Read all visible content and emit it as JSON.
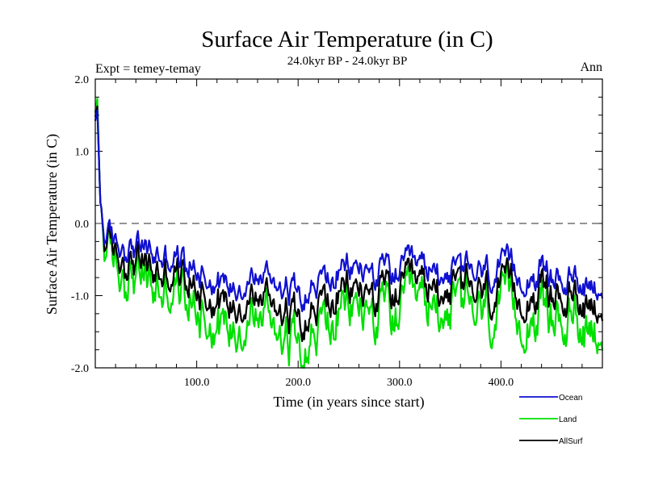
{
  "chart_data": {
    "type": "line",
    "title": "Surface Air Temperature (in C)",
    "subtitle": "24.0kyr BP - 24.0kyr BP",
    "experiment_label": "Expt = temey-temay",
    "period_label": "Ann",
    "xlabel": "Time (in years since start)",
    "ylabel": "Surface Air Temperature (in C)",
    "xlim": [
      0,
      500
    ],
    "ylim": [
      -2.0,
      2.0
    ],
    "xticks": [
      100,
      200,
      300,
      400
    ],
    "xtick_labels": [
      "100.0",
      "200.0",
      "300.0",
      "400.0"
    ],
    "yticks": [
      2.0,
      1.0,
      0.0,
      -1.0,
      -2.0
    ],
    "ytick_labels": [
      "2.0",
      "1.0",
      "0.0",
      "-1.0",
      "-2.0"
    ],
    "reference_line": 0.0,
    "colors": {
      "Ocean": "#1010d0",
      "Land": "#00e000",
      "AllSurf": "#000000"
    },
    "series": [
      {
        "name": "Ocean",
        "baseline": [
          [
            0,
            1.4
          ],
          [
            2,
            1.55
          ],
          [
            5,
            0.3
          ],
          [
            8,
            -0.05
          ],
          [
            15,
            -0.25
          ],
          [
            30,
            -0.35
          ],
          [
            50,
            -0.45
          ],
          [
            80,
            -0.6
          ],
          [
            110,
            -0.7
          ],
          [
            140,
            -0.85
          ],
          [
            170,
            -0.75
          ],
          [
            200,
            -0.8
          ],
          [
            250,
            -0.65
          ],
          [
            300,
            -0.7
          ],
          [
            350,
            -0.75
          ],
          [
            400,
            -0.65
          ],
          [
            450,
            -0.75
          ],
          [
            500,
            -0.8
          ]
        ]
      },
      {
        "name": "Land",
        "baseline": [
          [
            0,
            1.5
          ],
          [
            2,
            1.7
          ],
          [
            5,
            0.3
          ],
          [
            8,
            -0.1
          ],
          [
            15,
            -0.55
          ],
          [
            30,
            -0.75
          ],
          [
            50,
            -0.95
          ],
          [
            80,
            -1.1
          ],
          [
            110,
            -1.25
          ],
          [
            140,
            -1.4
          ],
          [
            170,
            -1.3
          ],
          [
            200,
            -1.4
          ],
          [
            250,
            -1.2
          ],
          [
            300,
            -1.3
          ],
          [
            350,
            -1.3
          ],
          [
            400,
            -1.2
          ],
          [
            450,
            -1.3
          ],
          [
            500,
            -1.35
          ]
        ]
      },
      {
        "name": "AllSurf",
        "baseline": [
          [
            0,
            1.45
          ],
          [
            2,
            1.6
          ],
          [
            5,
            0.3
          ],
          [
            8,
            -0.08
          ],
          [
            15,
            -0.4
          ],
          [
            30,
            -0.55
          ],
          [
            50,
            -0.7
          ],
          [
            80,
            -0.85
          ],
          [
            110,
            -0.95
          ],
          [
            140,
            -1.1
          ],
          [
            170,
            -1.05
          ],
          [
            200,
            -1.1
          ],
          [
            250,
            -0.95
          ],
          [
            300,
            -1.0
          ],
          [
            350,
            -1.0
          ],
          [
            400,
            -0.95
          ],
          [
            450,
            -1.0
          ],
          [
            500,
            -1.05
          ]
        ]
      }
    ],
    "legend": [
      "Ocean",
      "Land",
      "AllSurf"
    ]
  }
}
